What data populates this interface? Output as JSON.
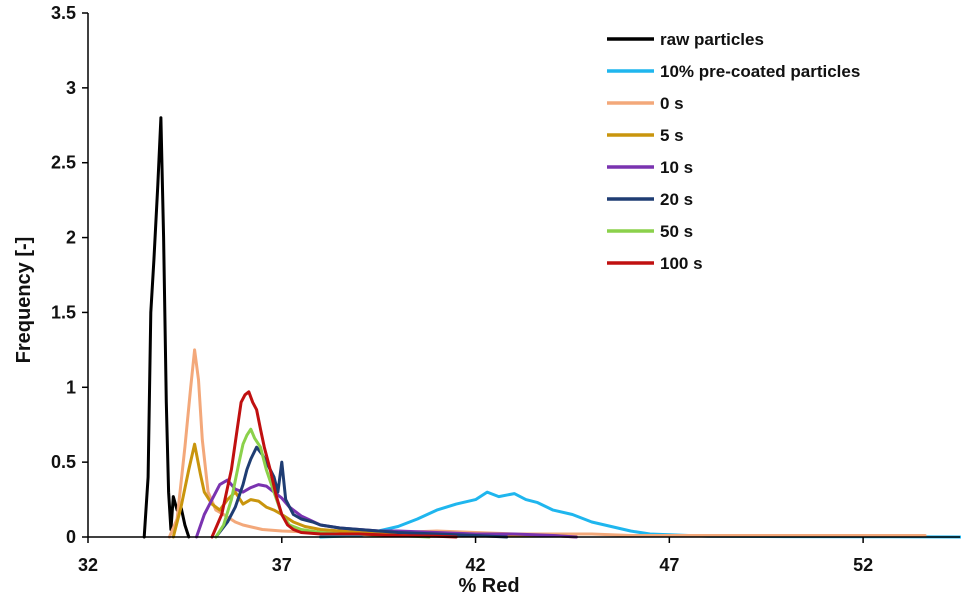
{
  "chart_data": {
    "type": "line",
    "xlabel": "% Red",
    "ylabel": "Frequency  [-]",
    "xlim": [
      32,
      54.5
    ],
    "ylim": [
      0,
      3.5
    ],
    "xticks": [
      32,
      37,
      42,
      47,
      52
    ],
    "yticks": [
      0,
      0.5,
      1,
      1.5,
      2,
      2.5,
      3,
      3.5
    ],
    "ytick_labels": [
      "0",
      "0.5",
      "1",
      "1.5",
      "2",
      "2.5",
      "3",
      "3.5"
    ],
    "grid": false,
    "legend_position": "top-right",
    "series": [
      {
        "name": "raw particles",
        "color": "#000000",
        "x": [
          33.45,
          33.55,
          33.62,
          33.7,
          33.8,
          33.88,
          33.95,
          34.02,
          34.08,
          34.14,
          34.2,
          34.3,
          34.4,
          34.5,
          34.6
        ],
        "y": [
          0,
          0.4,
          1.5,
          1.85,
          2.35,
          2.8,
          2.0,
          0.9,
          0.3,
          0.05,
          0.27,
          0.18,
          0.2,
          0.08,
          0
        ]
      },
      {
        "name": "10% pre-coated particles",
        "color": "#1fb6ee",
        "x": [
          38.0,
          39.0,
          40.0,
          40.5,
          41.0,
          41.5,
          42.0,
          42.3,
          42.6,
          43.0,
          43.3,
          43.6,
          44.0,
          44.5,
          45.0,
          45.5,
          46.0,
          46.5,
          47.0,
          47.5,
          48.0,
          50.0,
          52.0,
          54.5
        ],
        "y": [
          0,
          0.01,
          0.07,
          0.12,
          0.18,
          0.22,
          0.25,
          0.3,
          0.27,
          0.29,
          0.25,
          0.23,
          0.18,
          0.15,
          0.1,
          0.07,
          0.04,
          0.02,
          0.015,
          0.01,
          0.005,
          0.003,
          0.002,
          0
        ]
      },
      {
        "name": "0 s",
        "color": "#f3a87a",
        "x": [
          34.1,
          34.3,
          34.5,
          34.65,
          34.75,
          34.85,
          34.95,
          35.1,
          35.3,
          35.5,
          35.8,
          36.0,
          36.5,
          37.0,
          38.0,
          39.0,
          40.0,
          41.0,
          42.0,
          43.0,
          44.0,
          45.0,
          46.0,
          48.0,
          50.0,
          52.0,
          53.6
        ],
        "y": [
          0,
          0.12,
          0.6,
          1.0,
          1.25,
          1.05,
          0.65,
          0.3,
          0.18,
          0.15,
          0.1,
          0.08,
          0.05,
          0.04,
          0.03,
          0.03,
          0.03,
          0.04,
          0.03,
          0.02,
          0.02,
          0.02,
          0.01,
          0.01,
          0.01,
          0.01,
          0.01
        ]
      },
      {
        "name": "5 s",
        "color": "#c9950d",
        "x": [
          34.2,
          34.4,
          34.6,
          34.75,
          34.9,
          35.0,
          35.2,
          35.4,
          35.6,
          35.8,
          36.0,
          36.2,
          36.4,
          36.6,
          36.8,
          37.0,
          37.3,
          37.6,
          38.0,
          39.0,
          40.0,
          41.0,
          42.0,
          43.0,
          44.0,
          44.6
        ],
        "y": [
          0,
          0.2,
          0.45,
          0.62,
          0.42,
          0.3,
          0.22,
          0.18,
          0.25,
          0.3,
          0.22,
          0.25,
          0.24,
          0.2,
          0.18,
          0.15,
          0.1,
          0.07,
          0.05,
          0.03,
          0.02,
          0.02,
          0.01,
          0.01,
          0.01,
          0
        ]
      },
      {
        "name": "10 s",
        "color": "#7a33b0",
        "x": [
          34.8,
          35.0,
          35.2,
          35.4,
          35.6,
          35.8,
          36.0,
          36.2,
          36.4,
          36.6,
          36.8,
          37.0,
          37.2,
          37.5,
          38.0,
          38.5,
          39.0,
          39.5,
          40.0,
          41.0,
          42.0,
          43.0,
          44.0,
          44.6
        ],
        "y": [
          0,
          0.15,
          0.25,
          0.35,
          0.38,
          0.32,
          0.3,
          0.33,
          0.35,
          0.34,
          0.3,
          0.26,
          0.2,
          0.14,
          0.08,
          0.06,
          0.05,
          0.04,
          0.04,
          0.03,
          0.02,
          0.02,
          0.01,
          0
        ]
      },
      {
        "name": "20 s",
        "color": "#1f3d73",
        "x": [
          35.3,
          35.6,
          35.8,
          36.0,
          36.1,
          36.2,
          36.35,
          36.5,
          36.6,
          36.7,
          36.8,
          36.9,
          37.0,
          37.1,
          37.3,
          37.5,
          37.8,
          38.0,
          38.5,
          39.0,
          39.5,
          40.0,
          41.0,
          42.0,
          42.8
        ],
        "y": [
          0,
          0.1,
          0.2,
          0.35,
          0.45,
          0.52,
          0.6,
          0.55,
          0.5,
          0.45,
          0.4,
          0.3,
          0.5,
          0.25,
          0.15,
          0.12,
          0.1,
          0.08,
          0.06,
          0.05,
          0.04,
          0.03,
          0.02,
          0.01,
          0
        ]
      },
      {
        "name": "50 s",
        "color": "#8bd14b",
        "x": [
          35.3,
          35.5,
          35.7,
          35.9,
          36.0,
          36.1,
          36.2,
          36.3,
          36.45,
          36.6,
          36.8,
          37.0,
          37.2,
          37.5,
          38.0,
          38.5,
          39.0,
          39.5,
          40.0,
          40.8
        ],
        "y": [
          0,
          0.08,
          0.25,
          0.5,
          0.62,
          0.68,
          0.72,
          0.66,
          0.6,
          0.45,
          0.3,
          0.15,
          0.08,
          0.05,
          0.03,
          0.02,
          0.02,
          0.01,
          0.01,
          0
        ]
      },
      {
        "name": "100 s",
        "color": "#c01010",
        "x": [
          35.2,
          35.45,
          35.7,
          35.85,
          35.95,
          36.05,
          36.15,
          36.25,
          36.35,
          36.45,
          36.55,
          36.7,
          36.85,
          37.0,
          37.15,
          37.3,
          37.5,
          38.0,
          38.5,
          39.0,
          40.0,
          41.0,
          41.5
        ],
        "y": [
          0,
          0.15,
          0.45,
          0.72,
          0.9,
          0.95,
          0.97,
          0.9,
          0.85,
          0.72,
          0.6,
          0.45,
          0.28,
          0.15,
          0.08,
          0.05,
          0.03,
          0.02,
          0.02,
          0.02,
          0.01,
          0.005,
          0
        ]
      }
    ]
  }
}
